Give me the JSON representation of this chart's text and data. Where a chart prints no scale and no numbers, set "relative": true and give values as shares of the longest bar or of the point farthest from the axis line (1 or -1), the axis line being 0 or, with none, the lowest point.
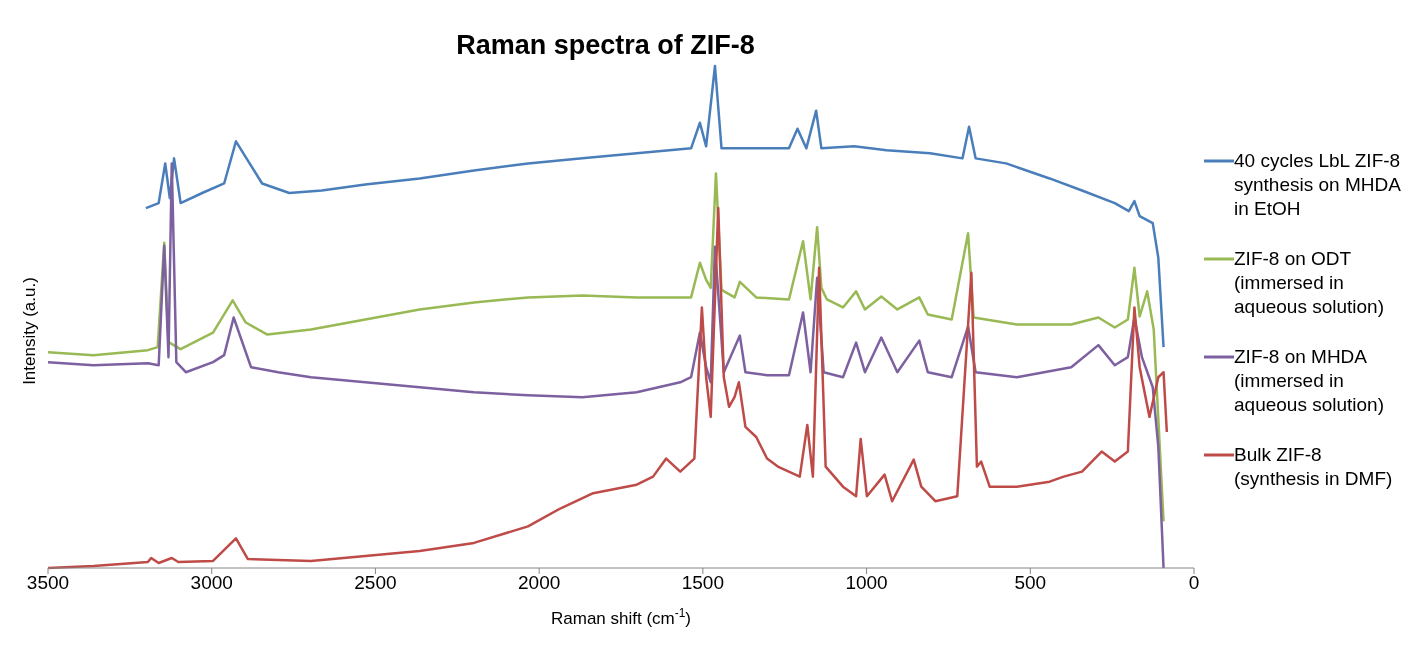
{
  "chart_data": {
    "type": "line",
    "title": "Raman spectra of ZIF-8",
    "xlabel": "Raman shift (cm$^{-1}$)",
    "ylabel": "Intensity (a.u.)",
    "relative": true,
    "xlim": [
      3500,
      0
    ],
    "xticks": [
      3500,
      3000,
      2500,
      2000,
      1500,
      1000,
      500,
      0
    ],
    "grid": false,
    "legend": "right",
    "marker": "none",
    "line_style": "solid",
    "series": [
      {
        "name": "40 cycles LbL ZIF-8 synthesis on MHDA in EtOH",
        "color": "#4a7ebb",
        "x": [
          3201,
          3162,
          3142,
          3128,
          3115,
          3095,
          3029,
          2962,
          2926,
          2890,
          2846,
          2763,
          2664,
          2531,
          2365,
          2199,
          2034,
          1868,
          1702,
          1536,
          1509,
          1490,
          1463,
          1443,
          1387,
          1304,
          1237,
          1211,
          1184,
          1154,
          1138,
          1038,
          939,
          806,
          707,
          687,
          667,
          574,
          441,
          342,
          242,
          199,
          182,
          166,
          126,
          109,
          93
        ],
        "values": [
          0.717,
          0.727,
          0.806,
          0.737,
          0.816,
          0.727,
          0.747,
          0.766,
          0.85,
          0.812,
          0.766,
          0.747,
          0.752,
          0.764,
          0.776,
          0.792,
          0.806,
          0.816,
          0.826,
          0.836,
          0.887,
          0.84,
          1,
          0.836,
          0.836,
          0.836,
          0.836,
          0.875,
          0.836,
          0.911,
          0.836,
          0.84,
          0.832,
          0.826,
          0.816,
          0.879,
          0.816,
          0.806,
          0.776,
          0.752,
          0.727,
          0.711,
          0.731,
          0.701,
          0.687,
          0.618,
          0.44
        ]
      },
      {
        "name": "ZIF-8 on ODT (immersed in aqueous solution)",
        "color": "#98b954",
        "x": [
          3500,
          3361,
          3195,
          3165,
          3145,
          3132,
          3095,
          2996,
          2936,
          2896,
          2830,
          2697,
          2531,
          2365,
          2199,
          2034,
          1868,
          1702,
          1536,
          1509,
          1490,
          1476,
          1460,
          1443,
          1403,
          1387,
          1337,
          1237,
          1194,
          1171,
          1151,
          1138,
          1121,
          1072,
          1032,
          1005,
          955,
          906,
          839,
          813,
          740,
          690,
          673,
          541,
          375,
          292,
          242,
          202,
          182,
          166,
          143,
          123,
          109,
          93
        ],
        "values": [
          0.43,
          0.424,
          0.434,
          0.44,
          0.648,
          0.45,
          0.436,
          0.469,
          0.533,
          0.489,
          0.465,
          0.475,
          0.495,
          0.515,
          0.529,
          0.539,
          0.543,
          0.539,
          0.539,
          0.608,
          0.574,
          0.558,
          0.786,
          0.554,
          0.539,
          0.57,
          0.539,
          0.535,
          0.651,
          0.535,
          0.679,
          0.558,
          0.535,
          0.519,
          0.551,
          0.515,
          0.541,
          0.515,
          0.539,
          0.505,
          0.495,
          0.667,
          0.499,
          0.485,
          0.485,
          0.499,
          0.479,
          0.495,
          0.598,
          0.501,
          0.551,
          0.475,
          0.297,
          0.093
        ]
      },
      {
        "name": "ZIF-8 on MHDA (immersed in aqueous solution)",
        "color": "#7d60a0",
        "x": [
          3500,
          3361,
          3195,
          3162,
          3145,
          3132,
          3122,
          3108,
          3079,
          2996,
          2962,
          2933,
          2880,
          2797,
          2697,
          2531,
          2365,
          2199,
          2034,
          1868,
          1702,
          1569,
          1536,
          1509,
          1490,
          1476,
          1463,
          1436,
          1387,
          1370,
          1304,
          1237,
          1194,
          1171,
          1151,
          1131,
          1072,
          1032,
          1005,
          955,
          906,
          839,
          813,
          740,
          690,
          667,
          541,
          375,
          292,
          242,
          202,
          182,
          159,
          126,
          109,
          93
        ],
        "values": [
          0.41,
          0.404,
          0.408,
          0.404,
          0.642,
          0.42,
          0.806,
          0.41,
          0.39,
          0.41,
          0.424,
          0.499,
          0.4,
          0.39,
          0.38,
          0.37,
          0.36,
          0.35,
          0.344,
          0.34,
          0.35,
          0.37,
          0.38,
          0.469,
          0.4,
          0.37,
          0.64,
          0.39,
          0.463,
          0.39,
          0.384,
          0.384,
          0.509,
          0.39,
          0.578,
          0.39,
          0.38,
          0.449,
          0.39,
          0.459,
          0.39,
          0.453,
          0.39,
          0.38,
          0.481,
          0.39,
          0.38,
          0.4,
          0.444,
          0.404,
          0.42,
          0.499,
          0.42,
          0.36,
          0.242,
          0
        ]
      },
      {
        "name": "Bulk ZIF-8 (synthesis in DMF)",
        "color": "#be4b48",
        "x": [
          3500,
          3361,
          3195,
          3185,
          3162,
          3122,
          3102,
          2996,
          2926,
          2890,
          2697,
          2531,
          2365,
          2199,
          2034,
          1934,
          1835,
          1702,
          1652,
          1612,
          1569,
          1526,
          1503,
          1490,
          1476,
          1453,
          1436,
          1420,
          1403,
          1390,
          1370,
          1337,
          1304,
          1271,
          1204,
          1181,
          1164,
          1145,
          1125,
          1072,
          1032,
          1018,
          999,
          945,
          922,
          856,
          833,
          790,
          723,
          680,
          663,
          650,
          624,
          541,
          441,
          398,
          342,
          282,
          242,
          202,
          182,
          166,
          136,
          109,
          93,
          83
        ],
        "values": [
          0,
          0.004,
          0.012,
          0.02,
          0.01,
          0.02,
          0.012,
          0.014,
          0.059,
          0.018,
          0.014,
          0.024,
          0.034,
          0.05,
          0.083,
          0.119,
          0.149,
          0.166,
          0.182,
          0.218,
          0.192,
          0.218,
          0.519,
          0.38,
          0.301,
          0.717,
          0.38,
          0.321,
          0.341,
          0.37,
          0.281,
          0.261,
          0.218,
          0.202,
          0.182,
          0.285,
          0.182,
          0.598,
          0.202,
          0.162,
          0.143,
          0.257,
          0.143,
          0.186,
          0.133,
          0.216,
          0.162,
          0.133,
          0.143,
          0.588,
          0.202,
          0.212,
          0.162,
          0.162,
          0.172,
          0.182,
          0.192,
          0.232,
          0.212,
          0.232,
          0.519,
          0.4,
          0.301,
          0.38,
          0.39,
          0.271
        ]
      }
    ]
  }
}
